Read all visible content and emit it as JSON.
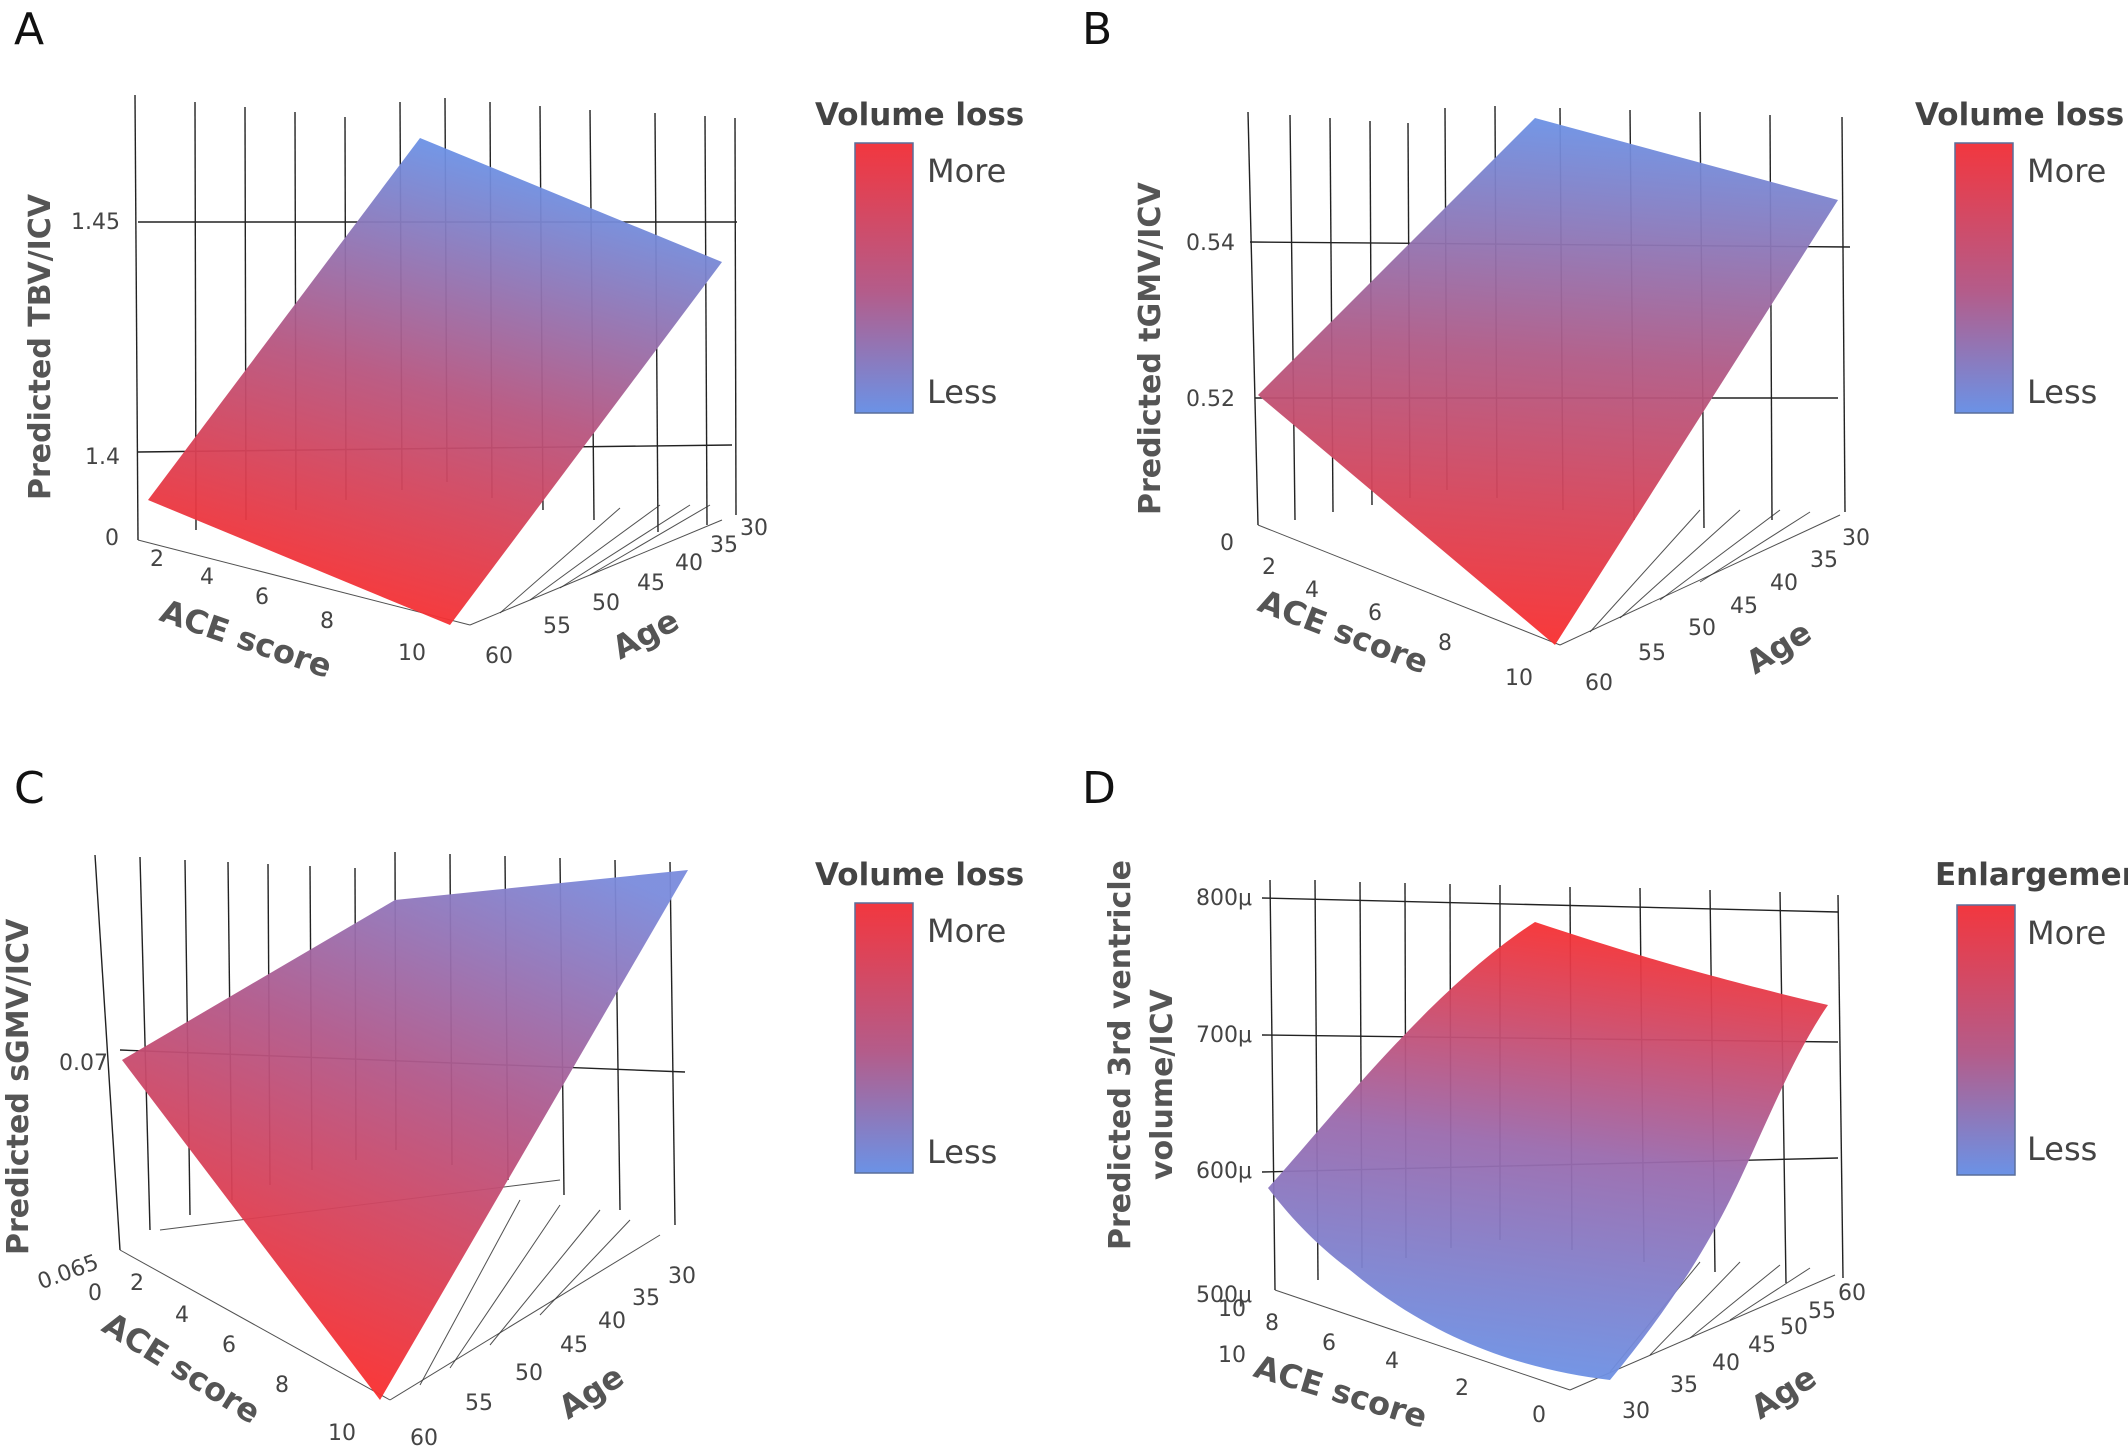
{
  "chart_data": [
    {
      "panel": "A",
      "type": "surface3d",
      "z_title": "Predicted TBV/ICV",
      "x_title": "ACE score",
      "y_title": "Age",
      "x_ticks": [
        "0",
        "2",
        "4",
        "6",
        "8",
        "10"
      ],
      "y_ticks": [
        "30",
        "35",
        "40",
        "45",
        "50",
        "55",
        "60"
      ],
      "z_ticks": [
        "1.4",
        "1.45"
      ],
      "x_range": [
        0,
        10
      ],
      "y_range": [
        30,
        60
      ],
      "corner_values": {
        "ace0_age30": 1.48,
        "ace10_age30": 1.44,
        "ace0_age60": 1.39,
        "ace10_age60": 1.36
      },
      "colorbar": {
        "title": "Volume loss",
        "top_label": "More",
        "bottom_label": "Less",
        "top_color": "#f2373f",
        "bottom_color": "#6b92e6"
      }
    },
    {
      "panel": "B",
      "type": "surface3d",
      "z_title": "Predicted tGMV/ICV",
      "x_title": "ACE score",
      "y_title": "Age",
      "x_ticks": [
        "0",
        "2",
        "4",
        "6",
        "8",
        "10"
      ],
      "y_ticks": [
        "30",
        "35",
        "40",
        "45",
        "50",
        "55",
        "60"
      ],
      "z_ticks": [
        "0.52",
        "0.54"
      ],
      "x_range": [
        0,
        10
      ],
      "y_range": [
        30,
        60
      ],
      "corner_values": {
        "ace0_age30": 0.55,
        "ace10_age30": 0.54,
        "ace0_age60": 0.52,
        "ace10_age60": 0.5
      },
      "colorbar": {
        "title": "Volume loss",
        "top_label": "More",
        "bottom_label": "Less",
        "top_color": "#f2373f",
        "bottom_color": "#6b92e6"
      }
    },
    {
      "panel": "C",
      "type": "surface3d",
      "z_title": "Predicted sGMV/ICV",
      "x_title": "ACE score",
      "y_title": "Age",
      "x_ticks": [
        "0",
        "2",
        "4",
        "6",
        "8",
        "10"
      ],
      "y_ticks": [
        "30",
        "35",
        "40",
        "45",
        "50",
        "55",
        "60"
      ],
      "z_ticks": [
        "0.065",
        "0.07"
      ],
      "x_range": [
        0,
        10
      ],
      "y_range": [
        30,
        60
      ],
      "corner_values": {
        "ace0_age30": 0.072,
        "ace10_age30": 0.073,
        "ace0_age60": 0.07,
        "ace10_age60": 0.065
      },
      "colorbar": {
        "title": "Volume loss",
        "top_label": "More",
        "bottom_label": "Less",
        "top_color": "#f2373f",
        "bottom_color": "#6b92e6"
      }
    },
    {
      "panel": "D",
      "type": "surface3d",
      "z_title_line1": "Predicted 3rd ventricle",
      "z_title_line2": "volume/ICV",
      "x_title": "ACE score",
      "y_title": "Age",
      "x_ticks": [
        "0",
        "2",
        "4",
        "6",
        "8",
        "10"
      ],
      "y_ticks": [
        "30",
        "35",
        "40",
        "45",
        "50",
        "55",
        "60"
      ],
      "z_ticks": [
        "500μ",
        "600μ",
        "700μ",
        "800μ"
      ],
      "x_range": [
        0,
        10
      ],
      "y_range": [
        30,
        60
      ],
      "corner_values": {
        "ace0_age30": 0.00051,
        "ace10_age30": 0.00058,
        "ace0_age60": 0.00072,
        "ace10_age60": 0.00078
      },
      "colorbar": {
        "title": "Enlargement",
        "top_label": "More",
        "bottom_label": "Less",
        "top_color": "#f2373f",
        "bottom_color": "#6b92e6"
      }
    }
  ]
}
